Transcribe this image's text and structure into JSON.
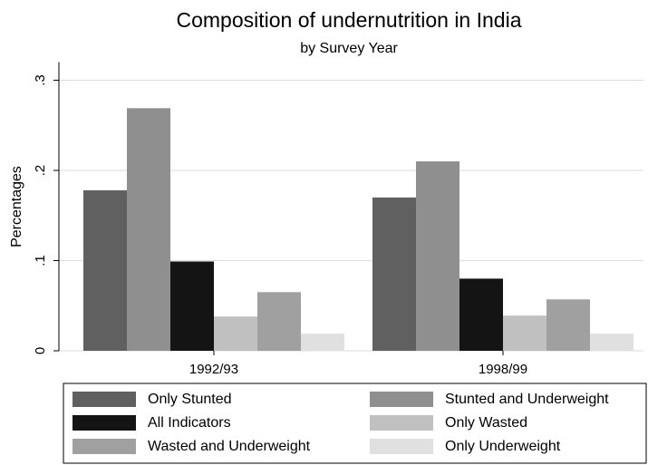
{
  "chart_data": {
    "type": "bar",
    "title": "Composition of undernutrition in India",
    "subtitle": "by Survey Year",
    "y_label": "Percentages",
    "categories": [
      "1992/93",
      "1998/99"
    ],
    "series": [
      {
        "name": "Only Stunted",
        "color": "#606060",
        "values": [
          0.178,
          0.17
        ]
      },
      {
        "name": "Stunted and Underweight",
        "color": "#8f8f8f",
        "values": [
          0.269,
          0.21
        ]
      },
      {
        "name": "All Indicators",
        "color": "#141414",
        "values": [
          0.099,
          0.08
        ]
      },
      {
        "name": "Only Wasted",
        "color": "#c0c0c0",
        "values": [
          0.038,
          0.039
        ]
      },
      {
        "name": "Wasted and Underweight",
        "color": "#a0a0a0",
        "values": [
          0.065,
          0.057
        ]
      },
      {
        "name": "Only Underweight",
        "color": "#e0e0e0",
        "values": [
          0.019,
          0.019
        ]
      }
    ],
    "ylim": [
      0,
      0.32
    ],
    "yticks": [
      0,
      {
        "value": 0.1,
        "label": ".1"
      },
      {
        "value": 0.2,
        "label": ".2"
      },
      {
        "value": 0.3,
        "label": ".3"
      }
    ],
    "grid": true
  }
}
